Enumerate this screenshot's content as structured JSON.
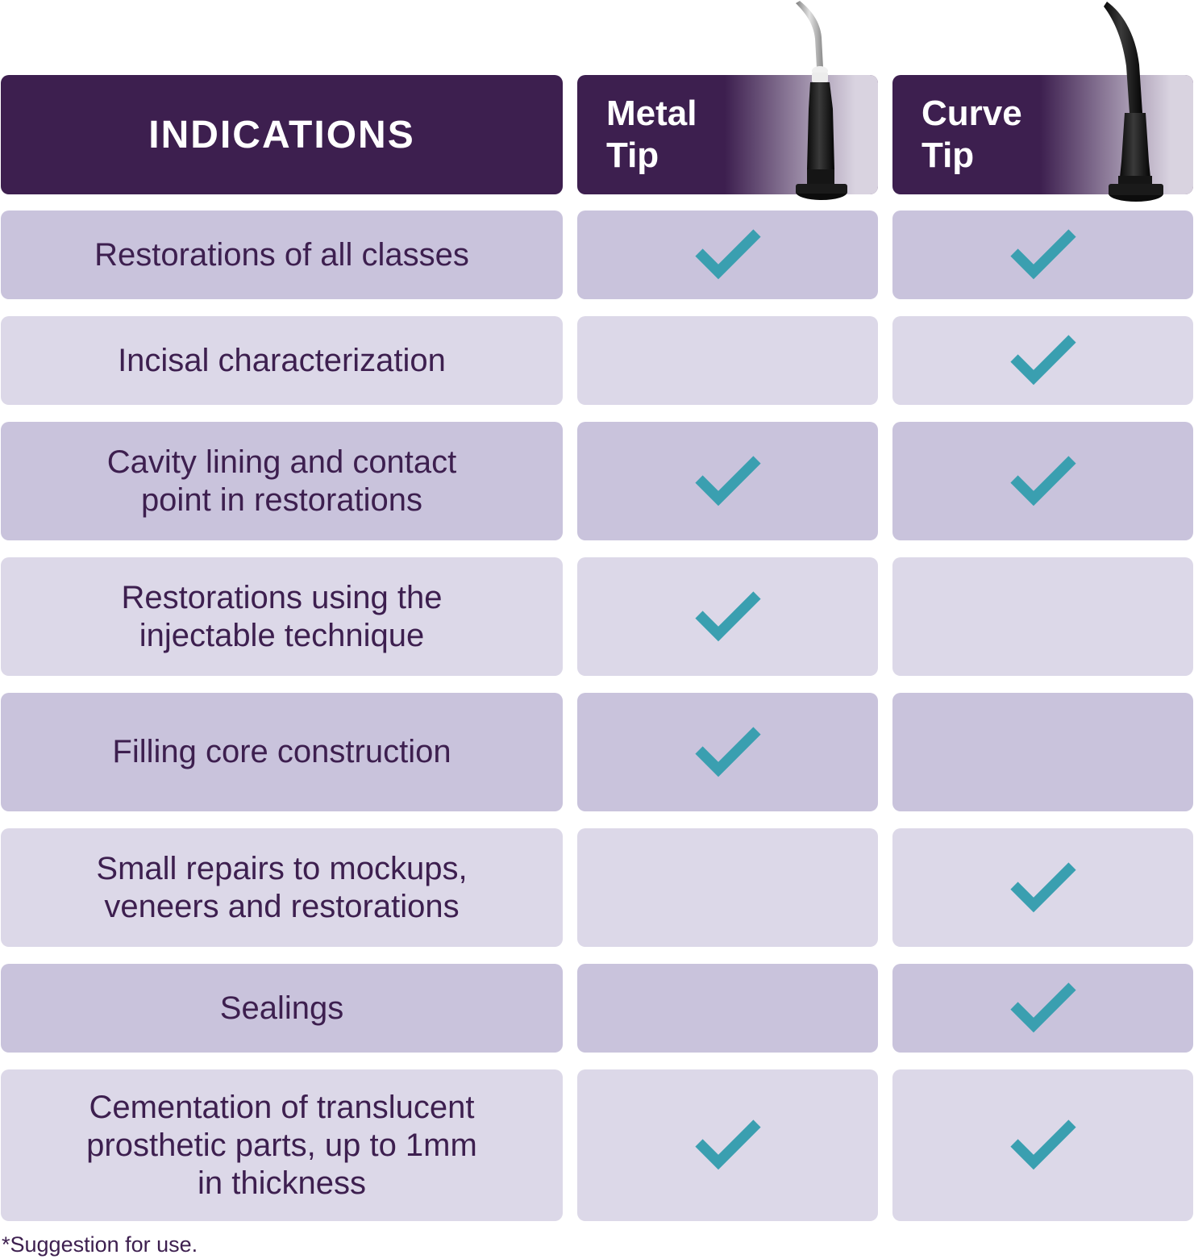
{
  "header": {
    "indications_label": "INDICATIONS",
    "metal_tip_label": "Metal\nTip",
    "curve_tip_label": "Curve\nTip"
  },
  "colors": {
    "header_bg": "#3d1f4f",
    "row_dark": "#c9c3dc",
    "row_light": "#dcd8e8",
    "check": "#3a9fb0",
    "text": "#3d1f4f"
  },
  "rows": [
    {
      "indication": "Restorations of all classes",
      "metal_tip": true,
      "curve_tip": true
    },
    {
      "indication": "Incisal characterization",
      "metal_tip": false,
      "curve_tip": true
    },
    {
      "indication": "Cavity lining and contact\npoint in restorations",
      "metal_tip": true,
      "curve_tip": true
    },
    {
      "indication": "Restorations using the\ninjectable technique",
      "metal_tip": true,
      "curve_tip": false
    },
    {
      "indication": "Filling core construction",
      "metal_tip": true,
      "curve_tip": false
    },
    {
      "indication": "Small repairs to mockups,\nveneers and restorations",
      "metal_tip": false,
      "curve_tip": true
    },
    {
      "indication": "Sealings",
      "metal_tip": false,
      "curve_tip": true
    },
    {
      "indication": "Cementation of translucent\nprosthetic parts, up to 1mm\nin thickness",
      "metal_tip": true,
      "curve_tip": true
    }
  ],
  "footnote": "*Suggestion for use."
}
